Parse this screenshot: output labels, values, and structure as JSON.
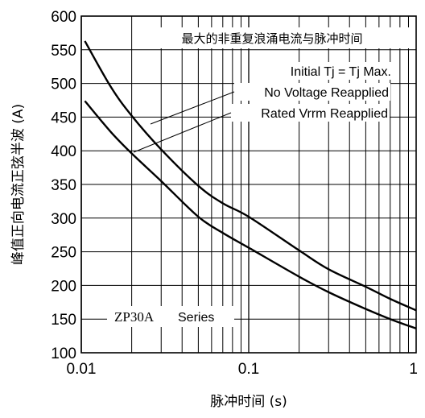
{
  "chart_data": {
    "type": "line",
    "title": "最大的非重复浪涌电流与脉冲时间",
    "xlabel": "脉冲时间 (s)",
    "ylabel": "峰值正向电流正弦半波 (A)",
    "x_scale": "log",
    "xlim": [
      0.01,
      1
    ],
    "ylim": [
      100,
      600
    ],
    "x_ticks": [
      "0.01",
      "0.1",
      "1"
    ],
    "y_ticks": [
      "100",
      "150",
      "200",
      "250",
      "300",
      "350",
      "400",
      "450",
      "500",
      "550",
      "600"
    ],
    "grid": true,
    "annotations": {
      "condition": "Initial Tj = Tj Max.",
      "curve_upper_label": "No Voltage Reapplied",
      "curve_lower_label": "Rated Vrrm Reapplied",
      "series_model": "ZP30A",
      "series_suffix": "Series"
    },
    "series": [
      {
        "name": "No Voltage Reapplied",
        "x": [
          0.0105,
          0.015,
          0.02,
          0.03,
          0.05,
          0.07,
          0.1,
          0.2,
          0.3,
          0.5,
          0.7,
          1.0
        ],
        "y": [
          563,
          495,
          452,
          402,
          348,
          322,
          302,
          252,
          224,
          198,
          180,
          163
        ]
      },
      {
        "name": "Rated Vrrm Reapplied",
        "x": [
          0.0105,
          0.015,
          0.02,
          0.03,
          0.05,
          0.07,
          0.1,
          0.2,
          0.3,
          0.5,
          0.7,
          1.0
        ],
        "y": [
          474,
          428,
          396,
          355,
          302,
          278,
          256,
          213,
          190,
          165,
          150,
          136
        ]
      }
    ]
  }
}
